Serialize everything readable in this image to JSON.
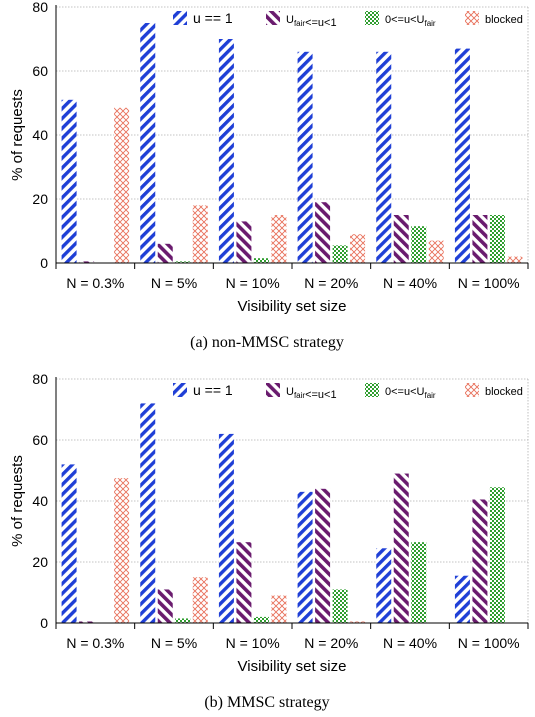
{
  "colors": {
    "u_eq_1": "#1f3fd6",
    "u_fair_range": "#6a1b6e",
    "u_below_fair": "#2e9e2e",
    "blocked": "#e8705a",
    "grid": "#b0b0b0",
    "axis": "#000000"
  },
  "chart_data": [
    {
      "type": "bar",
      "caption": "(a) non-MMSC strategy",
      "xlabel": "Visibility set size",
      "ylabel": "% of requests",
      "ylim": [
        0,
        80
      ],
      "yticks": [
        0,
        20,
        40,
        60,
        80
      ],
      "grid": true,
      "legend_position": "top",
      "categories": [
        "N = 0.3%",
        "N = 5%",
        "N = 10%",
        "N = 20%",
        "N = 40%",
        "N = 100%"
      ],
      "series": [
        {
          "name": "u == 1",
          "values": [
            51,
            75,
            70,
            66,
            66,
            67
          ]
        },
        {
          "name": "U_fair<=u<1",
          "values": [
            0.5,
            6,
            13,
            19,
            15,
            15
          ]
        },
        {
          "name": "0<=u<U_fair",
          "values": [
            0,
            0.5,
            1.5,
            5.5,
            11.5,
            15
          ]
        },
        {
          "name": "blocked",
          "values": [
            48.5,
            18,
            15,
            9,
            7,
            2
          ]
        }
      ]
    },
    {
      "type": "bar",
      "caption": "(b) MMSC strategy",
      "xlabel": "Visibility set size",
      "ylabel": "% of requests",
      "ylim": [
        0,
        80
      ],
      "yticks": [
        0,
        20,
        40,
        60,
        80
      ],
      "grid": true,
      "legend_position": "top",
      "categories": [
        "N = 0.3%",
        "N = 5%",
        "N = 10%",
        "N = 20%",
        "N = 40%",
        "N = 100%"
      ],
      "series": [
        {
          "name": "u == 1",
          "values": [
            52,
            72,
            62,
            43,
            24.5,
            15.5
          ]
        },
        {
          "name": "U_fair<=u<1",
          "values": [
            0.5,
            11,
            26.5,
            44,
            49,
            40.5
          ]
        },
        {
          "name": "0<=u<U_fair",
          "values": [
            0,
            1.5,
            2,
            11,
            26.5,
            44.5
          ]
        },
        {
          "name": "blocked",
          "values": [
            47.5,
            15,
            9,
            0.5,
            0,
            0
          ]
        }
      ]
    }
  ]
}
